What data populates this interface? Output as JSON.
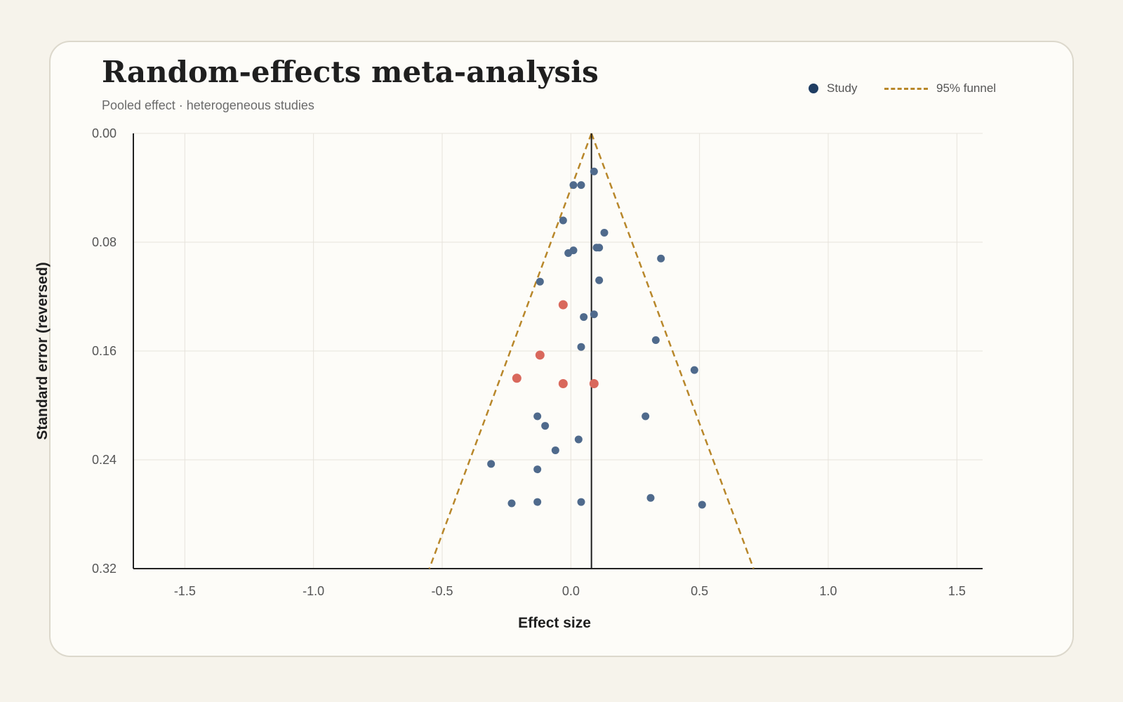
{
  "chart_data": {
    "type": "scatter",
    "title": "Random-effects meta-analysis",
    "subtitle": "Pooled effect · heterogeneous studies",
    "xlabel": "Effect size",
    "ylabel": "Standard error (reversed)",
    "xlim": [
      -1.7,
      1.6
    ],
    "ylim": [
      0.32,
      0.0
    ],
    "y_reversed": true,
    "x_ticks": [
      "-1.5",
      "-1.0",
      "-0.5",
      "0.0",
      "0.5",
      "1.0",
      "1.5"
    ],
    "y_ticks": [
      "0.00",
      "0.08",
      "0.16",
      "0.24",
      "0.32"
    ],
    "grid": true,
    "legend_position": "top-right",
    "legend": [
      {
        "label": "Study",
        "kind": "dot",
        "color": "#1f3d63"
      },
      {
        "label": "95% funnel",
        "kind": "dashed-line",
        "color": "#b8872a"
      }
    ],
    "pooled_effect": 0.08,
    "funnel": {
      "apex": [
        0.08,
        0.0
      ],
      "bottom_left": [
        -0.55,
        0.32
      ],
      "bottom_right": [
        0.71,
        0.32
      ]
    },
    "colors": {
      "study": "#4f6a8c",
      "highlight": "#d9685c",
      "pooled_line": "#1f1f1f",
      "funnel": "#b8872a"
    },
    "series": [
      {
        "name": "Study",
        "color": "#4f6a8c",
        "points": [
          [
            0.09,
            0.028
          ],
          [
            0.01,
            0.038
          ],
          [
            0.04,
            0.038
          ],
          [
            -0.03,
            0.064
          ],
          [
            0.13,
            0.073
          ],
          [
            0.1,
            0.084
          ],
          [
            0.11,
            0.084
          ],
          [
            0.01,
            0.086
          ],
          [
            -0.01,
            0.088
          ],
          [
            0.35,
            0.092
          ],
          [
            -0.12,
            0.109
          ],
          [
            0.11,
            0.108
          ],
          [
            0.09,
            0.133
          ],
          [
            0.05,
            0.135
          ],
          [
            0.33,
            0.152
          ],
          [
            0.04,
            0.157
          ],
          [
            0.48,
            0.174
          ],
          [
            0.29,
            0.208
          ],
          [
            -0.13,
            0.208
          ],
          [
            -0.1,
            0.215
          ],
          [
            0.03,
            0.225
          ],
          [
            -0.06,
            0.233
          ],
          [
            -0.31,
            0.243
          ],
          [
            -0.13,
            0.247
          ],
          [
            0.31,
            0.268
          ],
          [
            -0.23,
            0.272
          ],
          [
            -0.13,
            0.271
          ],
          [
            0.04,
            0.271
          ],
          [
            0.51,
            0.273
          ]
        ]
      },
      {
        "name": "",
        "color": "#d9685c",
        "points": [
          [
            -0.03,
            0.126
          ],
          [
            -0.12,
            0.163
          ],
          [
            -0.21,
            0.18
          ],
          [
            -0.03,
            0.184
          ],
          [
            0.09,
            0.184
          ]
        ]
      }
    ]
  }
}
